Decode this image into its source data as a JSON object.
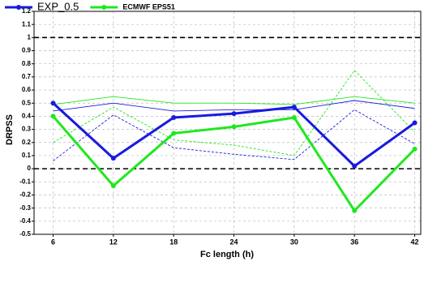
{
  "chart_data": {
    "type": "line",
    "x_label": "Fc length (h)",
    "y_label": "DRPSS",
    "x": [
      6,
      12,
      18,
      24,
      30,
      36,
      42
    ],
    "xlim": [
      4.1,
      42.6
    ],
    "xticks": [
      6,
      12,
      18,
      24,
      30,
      36,
      42
    ],
    "ylim": [
      -0.5,
      1.2
    ],
    "yticks": [
      -0.5,
      -0.4,
      -0.3,
      -0.2,
      -0.1,
      0,
      0.1,
      0.2,
      0.3,
      0.4,
      0.5,
      0.6,
      0.7,
      0.8,
      0.9,
      1,
      1.1,
      1.2
    ],
    "grid": true,
    "hlines": [
      0,
      1
    ],
    "legend": "top-left",
    "series": [
      {
        "name": "EXP_0.5",
        "color": "#1a1adf",
        "style": "thick",
        "values": [
          0.5,
          0.08,
          0.39,
          0.42,
          0.47,
          0.02,
          0.35
        ]
      },
      {
        "name": "ECMWF EPS51",
        "color": "#1fe81f",
        "style": "thick",
        "values": [
          0.4,
          -0.13,
          0.27,
          0.32,
          0.39,
          -0.32,
          0.15
        ]
      },
      {
        "color": "#1a1adf",
        "style": "thin",
        "values": [
          0.44,
          0.5,
          0.44,
          0.45,
          0.45,
          0.52,
          0.46
        ]
      },
      {
        "color": "#1fe81f",
        "style": "thin",
        "values": [
          0.49,
          0.55,
          0.5,
          0.5,
          0.49,
          0.55,
          0.5
        ]
      },
      {
        "color": "#1a1adf",
        "style": "dashed",
        "values": [
          0.06,
          0.41,
          0.16,
          0.11,
          0.07,
          0.45,
          0.19
        ]
      },
      {
        "color": "#1fe81f",
        "style": "dashed",
        "values": [
          0.2,
          0.47,
          0.22,
          0.18,
          0.1,
          0.75,
          0.28
        ]
      }
    ]
  }
}
